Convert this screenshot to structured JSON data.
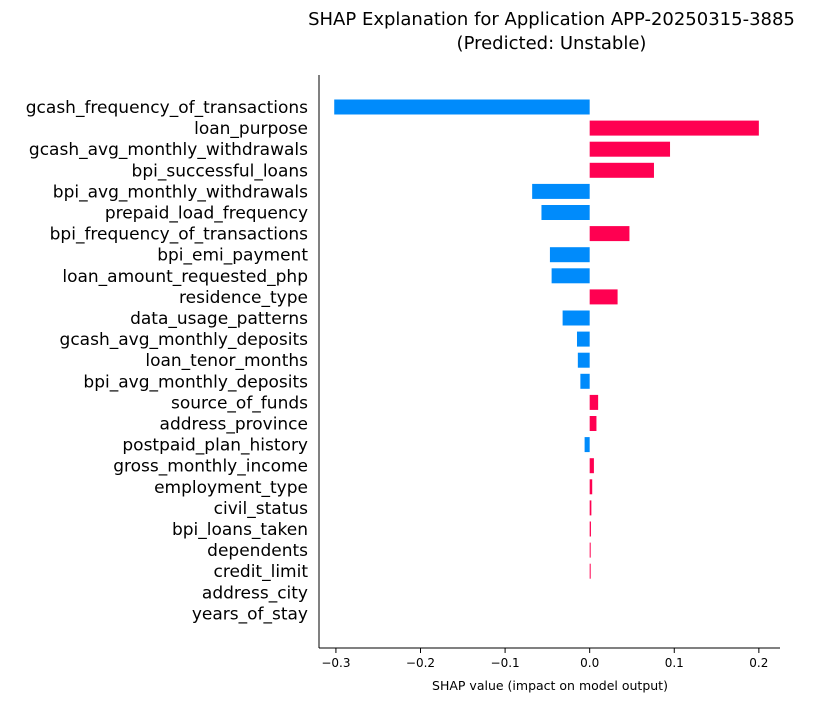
{
  "chart_data": {
    "type": "bar",
    "orientation": "horizontal",
    "title": "SHAP Explanation for Application APP-20250315-3885",
    "subtitle": "(Predicted: Unstable)",
    "xlabel": "SHAP value (impact on model output)",
    "ylabel": "",
    "xlim": [
      -0.32,
      0.225
    ],
    "xticks": [
      -0.3,
      -0.2,
      -0.1,
      0.0,
      0.1,
      0.2
    ],
    "xtick_labels": [
      "−0.3",
      "−0.2",
      "−0.1",
      "0.0",
      "0.1",
      "0.2"
    ],
    "grid": false,
    "legend": "none",
    "colors": {
      "positive": "#ff0051",
      "negative": "#008bfb"
    },
    "categories": [
      "gcash_frequency_of_transactions",
      "loan_purpose",
      "gcash_avg_monthly_withdrawals",
      "bpi_successful_loans",
      "bpi_avg_monthly_withdrawals",
      "prepaid_load_frequency",
      "bpi_frequency_of_transactions",
      "bpi_emi_payment",
      "loan_amount_requested_php",
      "residence_type",
      "data_usage_patterns",
      "gcash_avg_monthly_deposits",
      "loan_tenor_months",
      "bpi_avg_monthly_deposits",
      "source_of_funds",
      "address_province",
      "postpaid_plan_history",
      "gross_monthly_income",
      "employment_type",
      "civil_status",
      "bpi_loans_taken",
      "dependents",
      "credit_limit",
      "address_city",
      "years_of_stay"
    ],
    "values": [
      -0.302,
      0.2,
      0.095,
      0.076,
      -0.068,
      -0.057,
      0.047,
      -0.047,
      -0.045,
      0.033,
      -0.032,
      -0.015,
      -0.014,
      -0.011,
      0.01,
      0.008,
      -0.006,
      0.005,
      0.003,
      0.002,
      0.0015,
      0.001,
      0.001,
      0.0,
      0.0
    ]
  }
}
